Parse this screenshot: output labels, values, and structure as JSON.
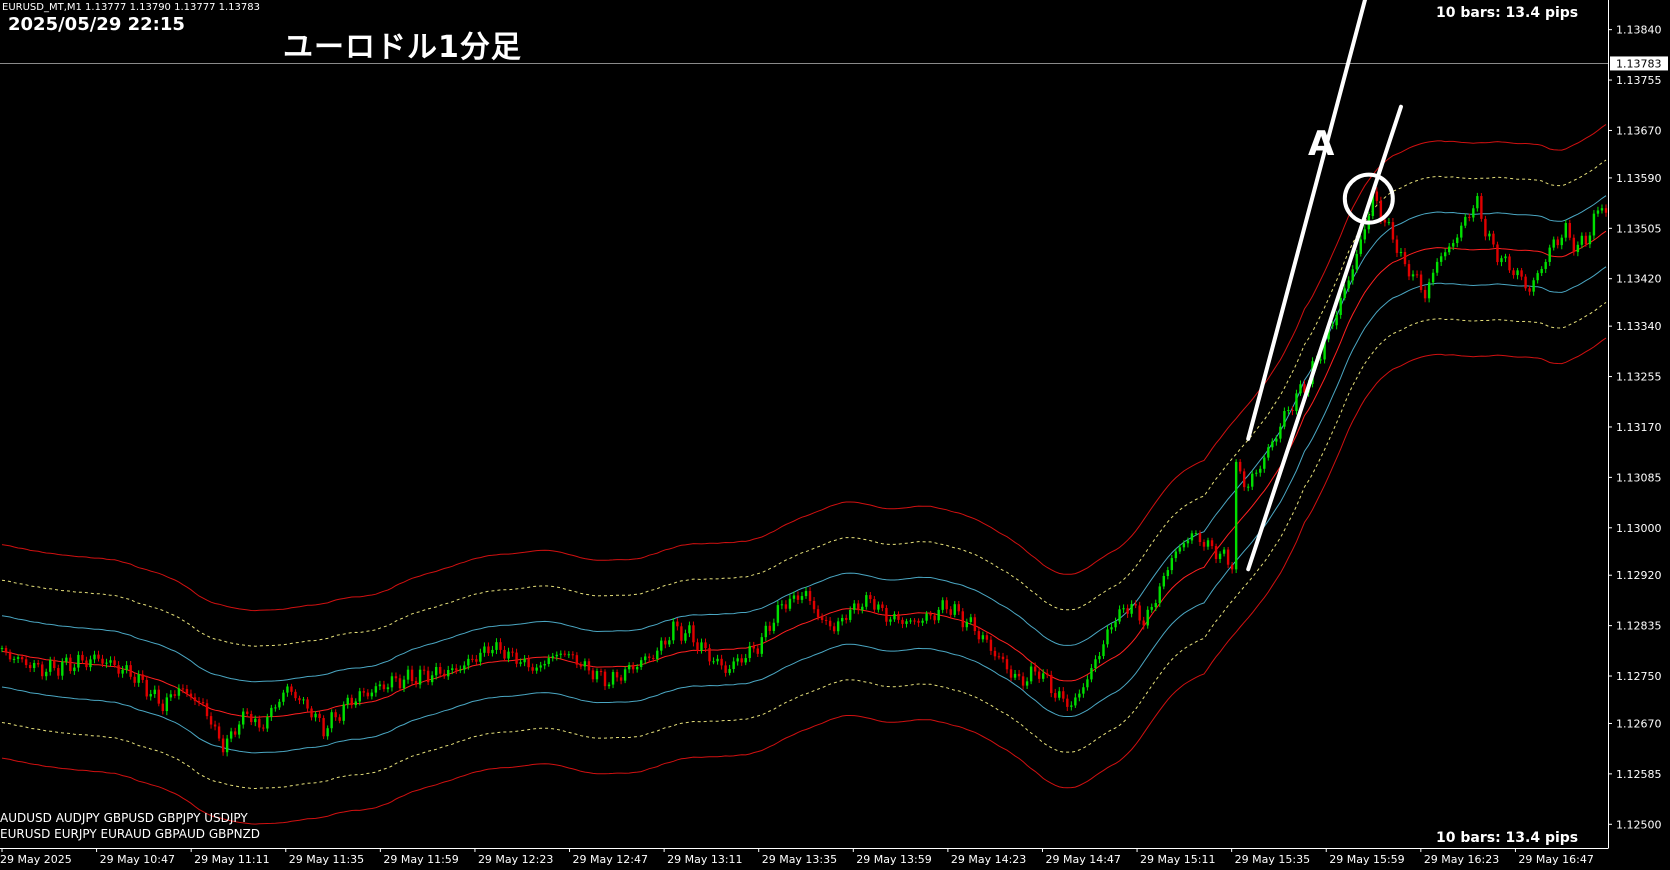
{
  "header": {
    "symbol_line": "EURUSD_MT,M1  1.13777 1.13790 1.13777 1.13783",
    "datetime": "2025/05/29 22:15",
    "title": "ユーロドル1分足"
  },
  "bars_info": {
    "top": "10 bars: 13.4 pips",
    "bottom": "10 bars: 13.4 pips"
  },
  "annotation": {
    "label": "A"
  },
  "symbols": {
    "line1": "AUDUSD  AUDJPY   GBPUSD  GBPJPY   USDJPY",
    "line2": "EURUSD  EURJPY   EURAUD  GBPAUD  GBPNZD"
  },
  "colors": {
    "background": "#000000",
    "bull": "#00e000",
    "bear": "#e00000",
    "ma": "#ff2020",
    "band_red": "#d01010",
    "band_blue": "#4aa6c2",
    "band_dotted": "#e6e07a",
    "trendline": "#ffffff",
    "axis": "#ffffff"
  },
  "chart_data": {
    "type": "candlestick",
    "symbol": "EURUSD_MT",
    "timeframe": "M1",
    "current_price": "1.13783",
    "ylim": [
      1.1246,
      1.1389
    ],
    "y_ticks": [
      "1.13840",
      "1.13755",
      "1.13670",
      "1.13590",
      "1.13505",
      "1.13420",
      "1.13340",
      "1.13255",
      "1.13170",
      "1.13085",
      "1.13000",
      "1.12920",
      "1.12835",
      "1.12750",
      "1.12670",
      "1.12585",
      "1.12500"
    ],
    "x_ticks": [
      "29 May 2025",
      "29 May 10:47",
      "29 May 11:11",
      "29 May 11:35",
      "29 May 11:59",
      "29 May 12:23",
      "29 May 12:47",
      "29 May 13:11",
      "29 May 13:35",
      "29 May 13:59",
      "29 May 14:23",
      "29 May 14:47",
      "29 May 15:11",
      "29 May 15:35",
      "29 May 15:59",
      "29 May 16:23",
      "29 May 16:47"
    ],
    "price_path": [
      [
        0,
        1.1279
      ],
      [
        10,
        1.1276
      ],
      [
        24,
        1.1278
      ],
      [
        33,
        1.1275
      ],
      [
        40,
        1.127
      ],
      [
        44,
        1.1273
      ],
      [
        50,
        1.127
      ],
      [
        55,
        1.1263
      ],
      [
        61,
        1.1269
      ],
      [
        64,
        1.1266
      ],
      [
        71,
        1.1273
      ],
      [
        77,
        1.1269
      ],
      [
        80,
        1.1266
      ],
      [
        87,
        1.1271
      ],
      [
        97,
        1.1274
      ],
      [
        104,
        1.1275
      ],
      [
        113,
        1.1276
      ],
      [
        122,
        1.128
      ],
      [
        125,
        1.1279
      ],
      [
        133,
        1.1276
      ],
      [
        136,
        1.1278
      ],
      [
        140,
        1.1279
      ],
      [
        146,
        1.1276
      ],
      [
        151,
        1.1274
      ],
      [
        158,
        1.1277
      ],
      [
        163,
        1.1279
      ],
      [
        167,
        1.1283
      ],
      [
        171,
        1.1282
      ],
      [
        175,
        1.1279
      ],
      [
        180,
        1.1276
      ],
      [
        188,
        1.128
      ],
      [
        194,
        1.1287
      ],
      [
        200,
        1.1289
      ],
      [
        203,
        1.1285
      ],
      [
        207,
        1.1283
      ],
      [
        211,
        1.1286
      ],
      [
        216,
        1.1288
      ],
      [
        220,
        1.1285
      ],
      [
        226,
        1.1284
      ],
      [
        231,
        1.1285
      ],
      [
        235,
        1.1287
      ],
      [
        242,
        1.1283
      ],
      [
        248,
        1.1278
      ],
      [
        253,
        1.1274
      ],
      [
        258,
        1.1276
      ],
      [
        262,
        1.1272
      ],
      [
        266,
        1.127
      ],
      [
        268,
        1.1272
      ],
      [
        271,
        1.1276
      ],
      [
        277,
        1.1285
      ],
      [
        281,
        1.1287
      ],
      [
        284,
        1.1284
      ],
      [
        287,
        1.1288
      ],
      [
        291,
        1.1295
      ],
      [
        296,
        1.1299
      ],
      [
        302,
        1.1296
      ],
      [
        306,
        1.1294
      ],
      [
        307,
        1.131
      ],
      [
        310,
        1.1307
      ],
      [
        315,
        1.1313
      ],
      [
        320,
        1.132
      ],
      [
        325,
        1.1325
      ],
      [
        330,
        1.1333
      ],
      [
        334,
        1.134
      ],
      [
        338,
        1.1348
      ],
      [
        341,
        1.1356
      ],
      [
        343,
        1.1353
      ],
      [
        346,
        1.1349
      ],
      [
        349,
        1.1344
      ],
      [
        352,
        1.1342
      ],
      [
        354,
        1.1339
      ],
      [
        357,
        1.1345
      ],
      [
        361,
        1.1348
      ],
      [
        364,
        1.1352
      ],
      [
        367,
        1.1355
      ],
      [
        369,
        1.135
      ],
      [
        372,
        1.1346
      ],
      [
        375,
        1.1344
      ],
      [
        378,
        1.1342
      ],
      [
        380,
        1.134
      ],
      [
        383,
        1.1344
      ],
      [
        386,
        1.1348
      ],
      [
        389,
        1.135
      ],
      [
        392,
        1.1347
      ],
      [
        395,
        1.135
      ],
      [
        398,
        1.1355
      ],
      [
        400,
        1.1351
      ]
    ],
    "ma_offset_bars": 5,
    "envelope_offsets": [
      0.0006,
      0.0012,
      0.0018
    ],
    "band_style": {
      "0.0006": "band_blue",
      "0.0012": "band_dotted",
      "0.0018": "band_red"
    },
    "trendlines": [
      {
        "from": [
          310,
          1.1315
        ],
        "to": [
          341,
          1.1394
        ]
      },
      {
        "from": [
          310,
          1.1293
        ],
        "to": [
          348,
          1.1371
        ]
      }
    ],
    "circle": {
      "bar": 340,
      "price": 1.13555
    },
    "total_bars": 400
  }
}
